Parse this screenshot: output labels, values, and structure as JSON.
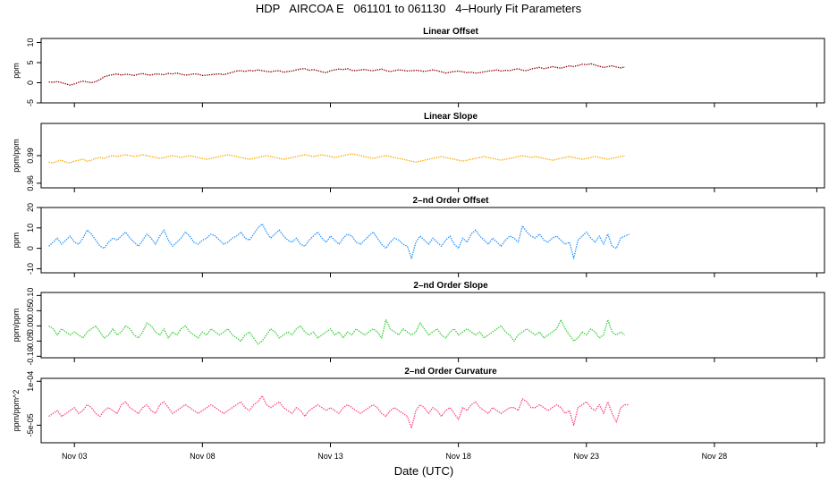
{
  "figure": {
    "title": "HDP   AIRCOA E   061101 to 061130   4–Hourly Fit Parameters",
    "xlabel": "Date (UTC)",
    "x_ticks": [
      "Nov 03",
      "Nov 08",
      "Nov 13",
      "Nov 18",
      "Nov 23",
      "Nov 28"
    ]
  },
  "chart_data": [
    {
      "type": "line",
      "title": "Linear Offset",
      "ylabel": "ppm",
      "color": "#8b0000",
      "ylim": [
        -5,
        11
      ],
      "yticks": [
        "-5",
        "0",
        "5",
        "10"
      ],
      "x_range_days": [
        1.7,
        32.3
      ],
      "series": [
        {
          "x_start_day": 2.0,
          "x_step_days": 0.1667,
          "values": [
            0.2,
            0.1,
            0.3,
            0.0,
            -0.3,
            -0.6,
            -0.3,
            0.1,
            0.4,
            0.2,
            0.0,
            0.3,
            0.8,
            1.5,
            1.8,
            2.0,
            2.2,
            1.9,
            2.1,
            2.0,
            1.8,
            2.1,
            2.3,
            2.0,
            1.9,
            2.2,
            2.1,
            2.0,
            2.3,
            2.2,
            2.4,
            2.1,
            1.9,
            2.0,
            2.2,
            2.1,
            1.8,
            1.9,
            2.0,
            2.1,
            2.2,
            2.0,
            2.3,
            2.6,
            2.9,
            3.0,
            2.8,
            3.1,
            2.9,
            3.2,
            3.0,
            2.8,
            2.7,
            2.9,
            3.0,
            2.6,
            2.8,
            2.9,
            3.2,
            3.4,
            3.5,
            3.1,
            3.3,
            3.0,
            2.7,
            2.5,
            3.0,
            3.2,
            3.4,
            3.3,
            3.5,
            3.1,
            3.0,
            3.2,
            3.3,
            3.1,
            3.0,
            3.2,
            3.4,
            3.0,
            2.8,
            3.0,
            3.2,
            3.1,
            2.9,
            3.0,
            3.1,
            3.0,
            2.8,
            3.0,
            3.2,
            3.0,
            2.7,
            2.4,
            2.6,
            2.8,
            2.9,
            2.7,
            2.5,
            2.6,
            2.4,
            2.5,
            2.7,
            2.9,
            3.0,
            3.2,
            2.9,
            3.1,
            3.0,
            3.3,
            3.5,
            3.1,
            3.0,
            3.4,
            3.6,
            3.8,
            3.5,
            3.7,
            4.0,
            3.8,
            3.6,
            3.9,
            4.2,
            4.0,
            4.3,
            4.6,
            4.5,
            4.7,
            4.4,
            4.1,
            3.8,
            4.0,
            4.2,
            3.9,
            3.7,
            3.9
          ]
        }
      ]
    },
    {
      "type": "line",
      "title": "Linear Slope",
      "ylabel": "ppm/ppm",
      "color": "#ffa500",
      "ylim": [
        0.955,
        1.025
      ],
      "yticks": [
        "0.96",
        "0.99"
      ],
      "x_range_days": [
        1.7,
        32.3
      ],
      "series": [
        {
          "x_start_day": 2.0,
          "x_step_days": 0.1667,
          "values": [
            0.983,
            0.982,
            0.984,
            0.985,
            0.983,
            0.982,
            0.984,
            0.985,
            0.986,
            0.984,
            0.985,
            0.987,
            0.988,
            0.987,
            0.989,
            0.99,
            0.989,
            0.99,
            0.991,
            0.99,
            0.989,
            0.99,
            0.991,
            0.99,
            0.989,
            0.988,
            0.987,
            0.988,
            0.989,
            0.99,
            0.989,
            0.988,
            0.989,
            0.99,
            0.989,
            0.988,
            0.987,
            0.986,
            0.987,
            0.988,
            0.989,
            0.99,
            0.991,
            0.99,
            0.989,
            0.988,
            0.987,
            0.986,
            0.987,
            0.988,
            0.989,
            0.99,
            0.989,
            0.988,
            0.987,
            0.986,
            0.987,
            0.988,
            0.989,
            0.99,
            0.991,
            0.99,
            0.989,
            0.99,
            0.991,
            0.99,
            0.989,
            0.988,
            0.989,
            0.99,
            0.991,
            0.992,
            0.991,
            0.99,
            0.989,
            0.988,
            0.987,
            0.988,
            0.989,
            0.99,
            0.989,
            0.988,
            0.987,
            0.986,
            0.985,
            0.984,
            0.983,
            0.984,
            0.985,
            0.986,
            0.987,
            0.988,
            0.989,
            0.988,
            0.987,
            0.986,
            0.985,
            0.984,
            0.985,
            0.986,
            0.987,
            0.988,
            0.989,
            0.988,
            0.987,
            0.986,
            0.985,
            0.986,
            0.987,
            0.988,
            0.989,
            0.99,
            0.989,
            0.988,
            0.989,
            0.988,
            0.987,
            0.986,
            0.985,
            0.986,
            0.987,
            0.988,
            0.989,
            0.988,
            0.987,
            0.986,
            0.987,
            0.988,
            0.989,
            0.988,
            0.987,
            0.986,
            0.987,
            0.988,
            0.989,
            0.99
          ]
        }
      ]
    },
    {
      "type": "line",
      "title": "2–nd Order Offset",
      "ylabel": "ppm",
      "color": "#1e90ff",
      "ylim": [
        -12,
        20
      ],
      "yticks": [
        "-10",
        "0",
        "10",
        "20"
      ],
      "x_range_days": [
        1.7,
        32.3
      ],
      "series": [
        {
          "x_start_day": 2.0,
          "x_step_days": 0.1667,
          "values": [
            1,
            3,
            5,
            2,
            4,
            6,
            3,
            2,
            5,
            9,
            7,
            4,
            1,
            0,
            3,
            5,
            4,
            6,
            8,
            5,
            3,
            1,
            4,
            7,
            5,
            2,
            6,
            9,
            4,
            1,
            3,
            5,
            8,
            6,
            3,
            2,
            4,
            5,
            7,
            6,
            4,
            2,
            3,
            5,
            6,
            8,
            5,
            4,
            7,
            10,
            12,
            8,
            5,
            7,
            9,
            6,
            4,
            3,
            5,
            2,
            1,
            4,
            6,
            8,
            5,
            3,
            6,
            4,
            2,
            5,
            7,
            6,
            3,
            2,
            4,
            6,
            8,
            5,
            2,
            0,
            3,
            5,
            4,
            2,
            1,
            -5,
            3,
            6,
            4,
            2,
            5,
            3,
            1,
            4,
            6,
            2,
            0,
            5,
            3,
            7,
            9,
            6,
            4,
            2,
            5,
            3,
            1,
            4,
            6,
            5,
            3,
            11,
            8,
            6,
            5,
            7,
            4,
            3,
            5,
            6,
            4,
            2,
            3,
            -5,
            4,
            6,
            8,
            5,
            3,
            6,
            2,
            7,
            1,
            0,
            5,
            6,
            7
          ]
        }
      ]
    },
    {
      "type": "line",
      "title": "2–nd Order Slope",
      "ylabel": "ppm/ppm",
      "color": "#32cd32",
      "ylim": [
        -0.105,
        0.11
      ],
      "yticks": [
        "-0.10",
        "-0.05",
        "0.00",
        "0.05",
        "0.10"
      ],
      "x_range_days": [
        1.7,
        32.3
      ],
      "series": [
        {
          "x_start_day": 2.0,
          "x_step_days": 0.1667,
          "values": [
            0.0,
            -0.01,
            -0.03,
            -0.01,
            -0.02,
            -0.03,
            -0.02,
            -0.03,
            -0.04,
            -0.02,
            -0.01,
            0.0,
            -0.02,
            -0.04,
            -0.03,
            -0.01,
            -0.03,
            -0.02,
            0.0,
            -0.01,
            -0.03,
            -0.04,
            -0.02,
            0.01,
            0.0,
            -0.02,
            -0.03,
            -0.01,
            -0.04,
            -0.02,
            -0.03,
            -0.01,
            0.0,
            -0.02,
            -0.03,
            -0.04,
            -0.02,
            -0.03,
            -0.01,
            -0.02,
            -0.03,
            -0.02,
            -0.01,
            -0.03,
            -0.04,
            -0.05,
            -0.03,
            -0.02,
            -0.04,
            -0.06,
            -0.05,
            -0.03,
            -0.01,
            -0.02,
            -0.04,
            -0.03,
            -0.02,
            -0.03,
            -0.01,
            0.0,
            -0.02,
            -0.03,
            -0.02,
            -0.04,
            -0.03,
            -0.02,
            -0.01,
            -0.03,
            -0.02,
            -0.04,
            -0.02,
            -0.03,
            -0.01,
            -0.02,
            -0.03,
            -0.02,
            -0.01,
            -0.02,
            -0.04,
            0.02,
            -0.01,
            -0.02,
            -0.03,
            -0.01,
            -0.02,
            -0.03,
            -0.02,
            0.01,
            -0.01,
            -0.03,
            -0.02,
            -0.01,
            -0.03,
            -0.04,
            -0.02,
            -0.01,
            -0.03,
            -0.02,
            -0.01,
            -0.02,
            -0.03,
            -0.02,
            -0.04,
            -0.03,
            -0.02,
            -0.01,
            0.0,
            -0.02,
            -0.03,
            -0.05,
            -0.03,
            -0.02,
            -0.01,
            -0.02,
            -0.03,
            -0.02,
            -0.04,
            -0.03,
            -0.02,
            -0.01,
            0.02,
            -0.01,
            -0.03,
            -0.05,
            -0.04,
            -0.02,
            -0.03,
            -0.01,
            -0.02,
            -0.04,
            -0.03,
            0.02,
            -0.02,
            -0.03,
            -0.02,
            -0.03
          ]
        }
      ]
    },
    {
      "type": "line",
      "title": "2–nd Order Curvature",
      "ylabel": "ppm/ppm^2",
      "color": "#ff3e7a",
      "ylim": [
        -0.00011,
        0.00011
      ],
      "yticks": [
        "-5e-05",
        "1e-04"
      ],
      "x_range_days": [
        1.7,
        32.3
      ],
      "series": [
        {
          "x_start_day": 2.0,
          "x_step_days": 0.1667,
          "values": [
            -2e-05,
            -1e-05,
            0.0,
            -2e-05,
            -1e-05,
            0.0,
            1e-05,
            -1e-05,
            0.0,
            2e-05,
            1e-05,
            -1e-05,
            -2e-05,
            0.0,
            1e-05,
            0.0,
            -1e-05,
            2e-05,
            3e-05,
            1e-05,
            0.0,
            -1e-05,
            1e-05,
            2e-05,
            0.0,
            -1e-05,
            2e-05,
            3e-05,
            1e-05,
            -1e-05,
            0.0,
            1e-05,
            2e-05,
            1e-05,
            0.0,
            -1e-05,
            0.0,
            1e-05,
            2e-05,
            1e-05,
            0.0,
            -1e-05,
            0.0,
            1e-05,
            2e-05,
            3e-05,
            1e-05,
            0.0,
            2e-05,
            3e-05,
            5e-05,
            2e-05,
            1e-05,
            2e-05,
            3e-05,
            1e-05,
            0.0,
            -1e-05,
            1e-05,
            0.0,
            -2e-05,
            0.0,
            1e-05,
            2e-05,
            1e-05,
            0.0,
            1e-05,
            0.0,
            -1e-05,
            1e-05,
            2e-05,
            1e-05,
            0.0,
            -1e-05,
            0.0,
            1e-05,
            2e-05,
            1e-05,
            -1e-05,
            -2e-05,
            0.0,
            1e-05,
            0.0,
            -1e-05,
            -2e-05,
            -6e-05,
            0.0,
            2e-05,
            1e-05,
            -1e-05,
            1e-05,
            0.0,
            -2e-05,
            0.0,
            1e-05,
            -1e-05,
            -3e-05,
            1e-05,
            0.0,
            2e-05,
            3e-05,
            1e-05,
            0.0,
            -1e-05,
            1e-05,
            0.0,
            -1e-05,
            0.0,
            1e-05,
            1e-05,
            0.0,
            4e-05,
            3e-05,
            1e-05,
            1e-05,
            2e-05,
            1e-05,
            0.0,
            1e-05,
            2e-05,
            1e-05,
            -1e-05,
            0.0,
            -5e-05,
            1e-05,
            2e-05,
            3e-05,
            1e-05,
            0.0,
            2e-05,
            -1e-05,
            3e-05,
            -1e-05,
            -4e-05,
            1e-05,
            2e-05,
            2e-05
          ]
        }
      ]
    }
  ]
}
